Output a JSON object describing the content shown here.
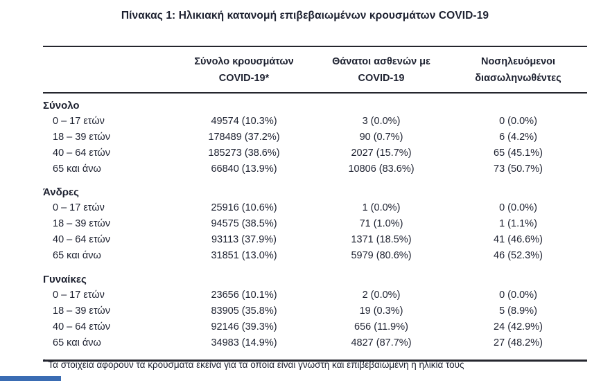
{
  "title": "Πίνακας 1: Ηλικιακή κατανομή επιβεβαιωμένων κρουσμάτων COVID-19",
  "table": {
    "columns": [
      {
        "line1": "Σύνολο κρουσμάτων",
        "line2": "COVID-19*"
      },
      {
        "line1": "Θάνατοι ασθενών με",
        "line2": "COVID-19"
      },
      {
        "line1": "Νοσηλευόμενοι",
        "line2": "διασωληνωθέντες"
      }
    ],
    "sections": [
      {
        "label": "Σύνολο",
        "rows": [
          {
            "age": "0 – 17 ετών",
            "cases": "49574 (10.3%)",
            "deaths": "3 (0.0%)",
            "intubated": "0 (0.0%)"
          },
          {
            "age": "18 – 39 ετών",
            "cases": "178489 (37.2%)",
            "deaths": "90 (0.7%)",
            "intubated": "6 (4.2%)"
          },
          {
            "age": "40 – 64 ετών",
            "cases": "185273 (38.6%)",
            "deaths": "2027 (15.7%)",
            "intubated": "65 (45.1%)"
          },
          {
            "age": "65 και άνω",
            "cases": "66840 (13.9%)",
            "deaths": "10806 (83.6%)",
            "intubated": "73 (50.7%)"
          }
        ]
      },
      {
        "label": "Άνδρες",
        "rows": [
          {
            "age": "0 – 17 ετών",
            "cases": "25916 (10.6%)",
            "deaths": "1 (0.0%)",
            "intubated": "0 (0.0%)"
          },
          {
            "age": "18 – 39 ετών",
            "cases": "94575 (38.5%)",
            "deaths": "71 (1.0%)",
            "intubated": "1 (1.1%)"
          },
          {
            "age": "40 – 64 ετών",
            "cases": "93113 (37.9%)",
            "deaths": "1371 (18.5%)",
            "intubated": "41 (46.6%)"
          },
          {
            "age": "65 και άνω",
            "cases": "31851 (13.0%)",
            "deaths": "5979 (80.6%)",
            "intubated": "46 (52.3%)"
          }
        ]
      },
      {
        "label": "Γυναίκες",
        "rows": [
          {
            "age": "0 – 17 ετών",
            "cases": "23656 (10.1%)",
            "deaths": "2 (0.0%)",
            "intubated": "0 (0.0%)"
          },
          {
            "age": "18 – 39 ετών",
            "cases": "83905 (35.8%)",
            "deaths": "19 (0.3%)",
            "intubated": "5 (8.9%)"
          },
          {
            "age": "40 – 64 ετών",
            "cases": "92146 (39.3%)",
            "deaths": "656 (11.9%)",
            "intubated": "24 (42.9%)"
          },
          {
            "age": "65 και άνω",
            "cases": "34983 (14.9%)",
            "deaths": "4827 (87.7%)",
            "intubated": "27 (48.2%)"
          }
        ]
      }
    ]
  },
  "footnote": {
    "marker": "*",
    "text": "Τα στοιχεία αφορούν τα κρούσματα εκείνα για τα οποία είναι γνωστή και επιβεβαιωμένη η ηλικία τους"
  },
  "colors": {
    "text": "#1d2130",
    "rule": "#25262e",
    "accent_blue": "#3a6cb3"
  }
}
